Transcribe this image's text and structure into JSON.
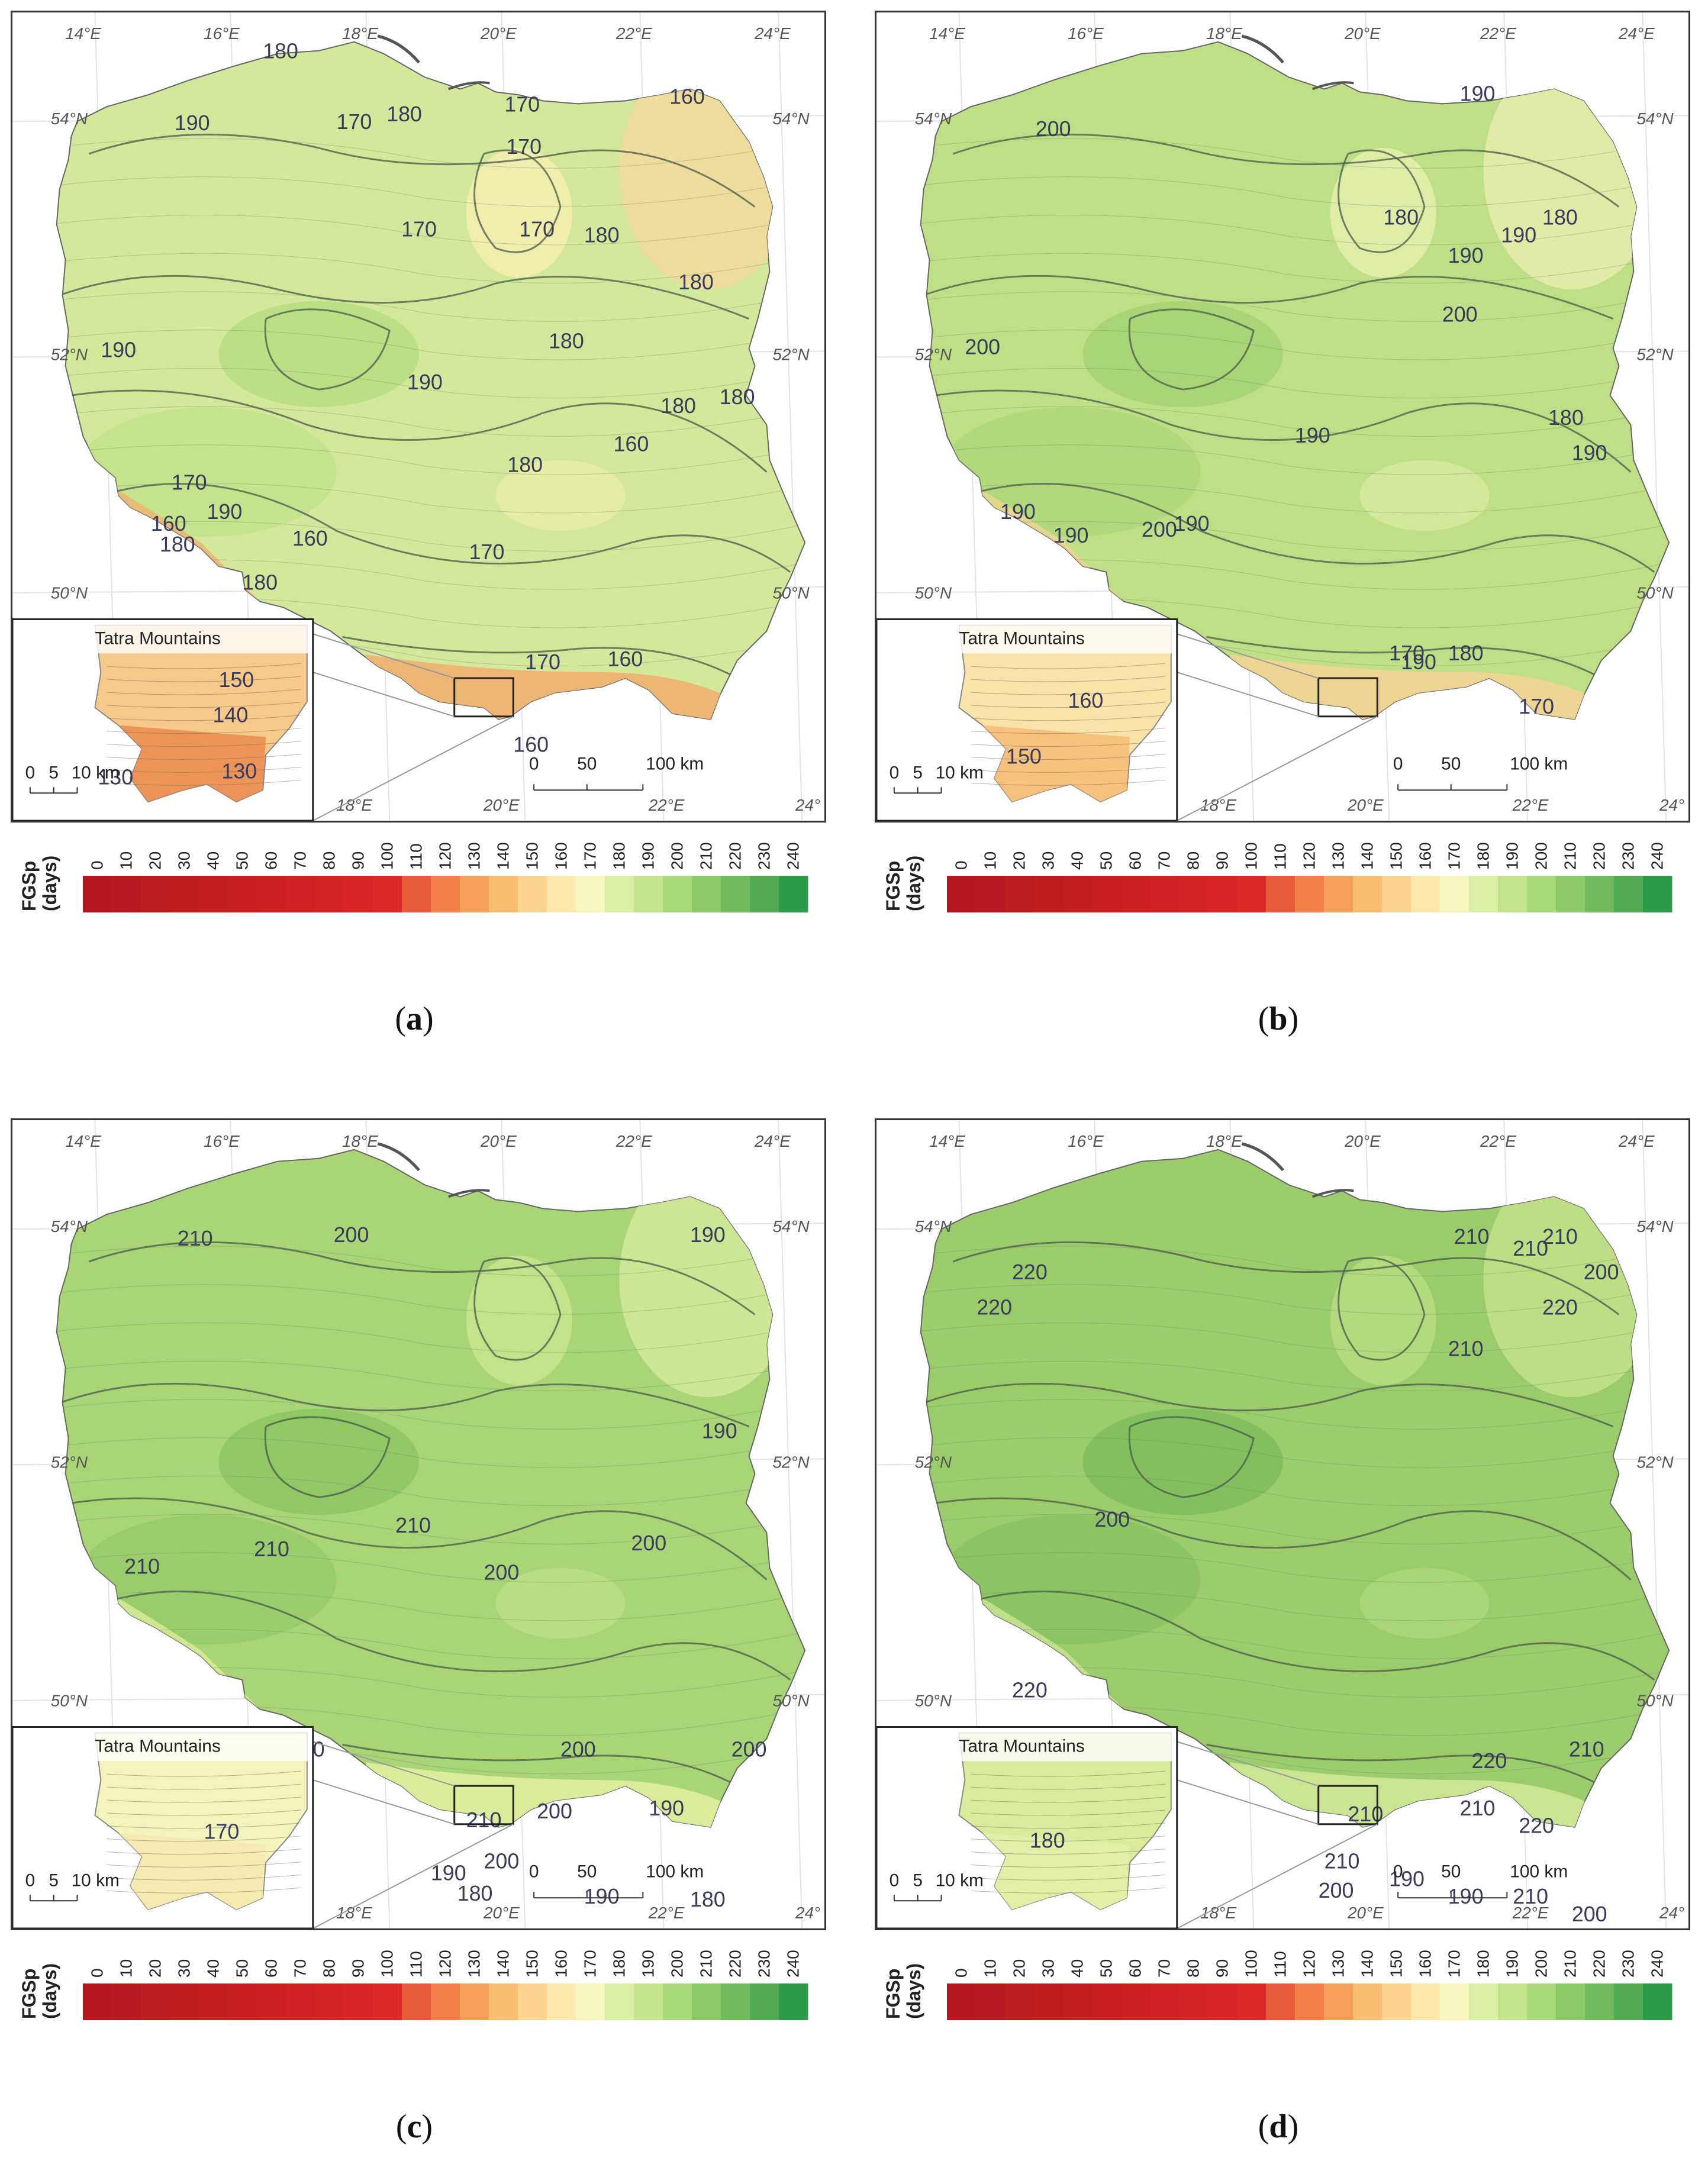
{
  "legend": {
    "title_line1": "FGSp",
    "title_line2": "(days)",
    "ticks": [
      "0",
      "10",
      "20",
      "30",
      "40",
      "50",
      "60",
      "70",
      "80",
      "90",
      "100",
      "110",
      "120",
      "130",
      "140",
      "150",
      "160",
      "170",
      "180",
      "190",
      "200",
      "210",
      "220",
      "230",
      "240"
    ],
    "colors": [
      "#b3171d",
      "#b71a1e",
      "#bb1c1e",
      "#bf1e1f",
      "#c31f20",
      "#c82022",
      "#cc2123",
      "#d02224",
      "#d42325",
      "#d82526",
      "#dc2827",
      "#e85b3a",
      "#f08048",
      "#f5a05a",
      "#f9bd72",
      "#fbd48f",
      "#fde9ae",
      "#f6f7c0",
      "#dcefa6",
      "#c3e48b",
      "#a8d877",
      "#8cc967",
      "#70ba5c",
      "#52aa52",
      "#2e9b48"
    ]
  },
  "inset_title": "Tatra Mountains",
  "scalebar": {
    "km_labels": [
      "0",
      "50",
      "100 km"
    ],
    "inset_labels": [
      "0",
      "5",
      "10 km"
    ]
  },
  "graticule": {
    "lon_labels": [
      "14°E",
      "16°E",
      "18°E",
      "20°E",
      "22°E",
      "24°E"
    ],
    "lon_labels_bottom": [
      "18°E",
      "20°E",
      "22°E",
      "24°"
    ],
    "lat_labels": [
      "54°N",
      "52°N",
      "50°N"
    ]
  },
  "panels": [
    {
      "letter": "a",
      "fill_colors": {
        "base": "#d3e89b",
        "high": "#b9dd82",
        "low": "#f3eeae",
        "ne": "#f1dc9f",
        "mountain": "#f0b070",
        "inset_base": "#f6c88a",
        "inset_low": "#ea8a4e"
      },
      "contour_labels": [
        "180",
        "170",
        "180",
        "170",
        "170",
        "160",
        "190",
        "170",
        "180",
        "180",
        "170",
        "190",
        "180",
        "190",
        "180",
        "180",
        "180",
        "160",
        "170",
        "190",
        "160",
        "180",
        "160",
        "170",
        "180",
        "160",
        "170",
        "160"
      ],
      "inset_labels": [
        "150",
        "140",
        "130",
        "130"
      ]
    },
    {
      "letter": "b",
      "fill_colors": {
        "base": "#bfdf86",
        "high": "#a6d474",
        "low": "#e3eeaa",
        "ne": "#e6ecab",
        "mountain": "#f3d395",
        "inset_base": "#f8e4a8",
        "inset_low": "#f4bb74"
      },
      "contour_labels": [
        "190",
        "200",
        "180",
        "190",
        "180",
        "190",
        "200",
        "200",
        "190",
        "190",
        "190",
        "180",
        "200",
        "190",
        "190",
        "170",
        "180",
        "190",
        "170"
      ],
      "inset_labels": [
        "160",
        "150"
      ]
    },
    {
      "letter": "c",
      "fill_colors": {
        "base": "#a9d576",
        "high": "#8cc764",
        "low": "#c5e38c",
        "ne": "#d3e99b",
        "mountain": "#e0ee9f",
        "inset_base": "#f2f4bc",
        "inset_low": "#f6e7ae"
      },
      "contour_labels": [
        "200",
        "210",
        "190",
        "190",
        "210",
        "210",
        "200",
        "200",
        "210",
        "200",
        "210",
        "200",
        "200",
        "210",
        "200",
        "190",
        "200",
        "190",
        "180",
        "190",
        "180"
      ],
      "inset_labels": [
        "170"
      ]
    },
    {
      "letter": "d",
      "fill_colors": {
        "base": "#9acc6b",
        "high": "#80be5d",
        "low": "#b6db80",
        "ne": "#c4e18b",
        "mountain": "#cfe797",
        "inset_base": "#d8ec9c",
        "inset_low": "#e4f0a9"
      },
      "contour_labels": [
        "210",
        "210",
        "210",
        "220",
        "200",
        "220",
        "210",
        "220",
        "200",
        "220",
        "220",
        "210",
        "220",
        "200",
        "210",
        "210",
        "210",
        "220",
        "210",
        "200",
        "190",
        "210",
        "200",
        "190"
      ],
      "inset_labels": [
        "180"
      ]
    }
  ]
}
